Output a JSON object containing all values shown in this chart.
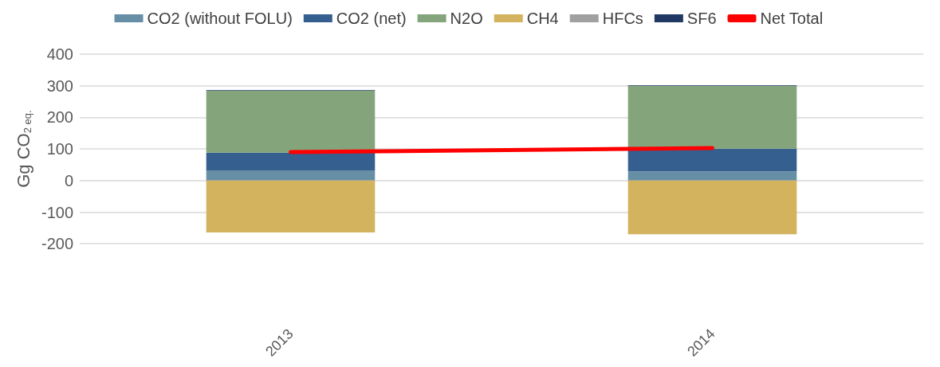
{
  "chart_data": {
    "type": "bar",
    "stacked": true,
    "ylabel": "Gg CO$_{2 eq.}$",
    "categories": [
      "2013",
      "2014"
    ],
    "series": [
      {
        "name": "CO2 (without FOLU)",
        "color": "#668fa6",
        "values": [
          32,
          29
        ]
      },
      {
        "name": "CO2 (net)",
        "color": "#355f8f",
        "values": [
          56,
          72
        ]
      },
      {
        "name": "N2O",
        "color": "#84a47c",
        "values": [
          196,
          198
        ]
      },
      {
        "name": "CH4",
        "color": "#d4b35f",
        "values": [
          -164,
          -170
        ]
      },
      {
        "name": "HFCs",
        "color": "#a0a0a0",
        "values": [
          0,
          0
        ]
      },
      {
        "name": "SF6",
        "color": "#1f3864",
        "values": [
          2,
          2
        ]
      },
      {
        "name": "Net Total",
        "type": "line",
        "color": "#ff0000",
        "values": [
          90,
          103
        ]
      }
    ],
    "ylim": [
      -200,
      400
    ],
    "yticks": [
      -200,
      -100,
      0,
      100,
      200,
      300,
      400
    ],
    "grid": "y",
    "legend": "top",
    "marker": "none"
  }
}
